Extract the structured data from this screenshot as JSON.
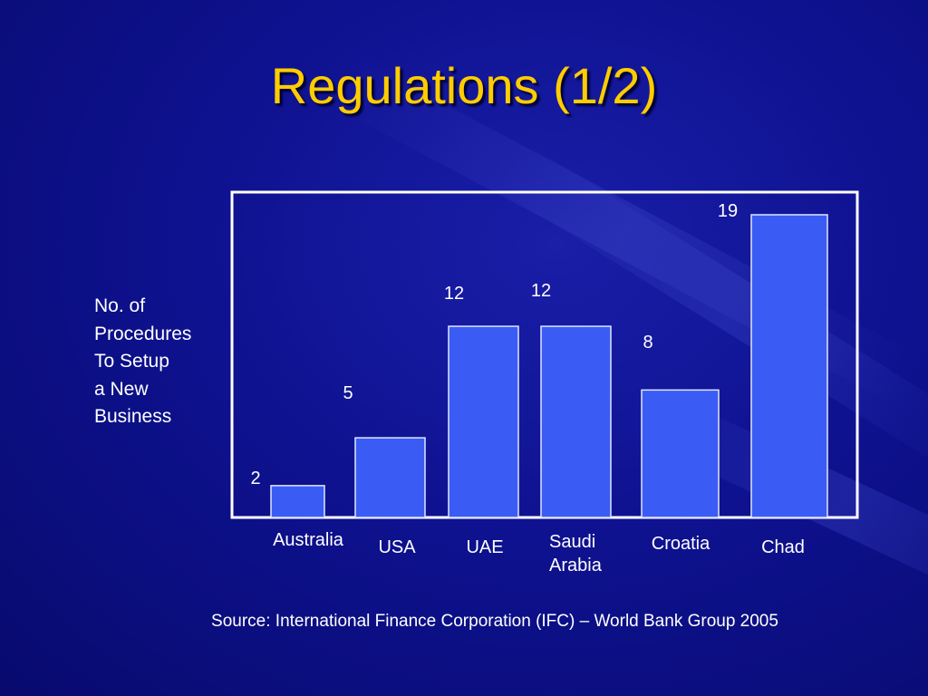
{
  "slide": {
    "title": "Regulations (1/2)",
    "source": "Source: International Finance Corporation (IFC) – World Bank Group 2005"
  },
  "chart_data": {
    "type": "bar",
    "categories": [
      "Australia",
      "USA",
      "UAE",
      "Saudi\nArabia",
      "Croatia",
      "Chad"
    ],
    "values": [
      2,
      5,
      12,
      12,
      8,
      19
    ],
    "ylabel": "No. of\nProcedures\nTo Setup\na New\nBusiness",
    "xlabel": "",
    "ylim": [
      0,
      20
    ],
    "grid": false,
    "legend": "none",
    "colors": {
      "bar_fill": "#3a5cf5",
      "bar_stroke": "#dfe6ff",
      "frame": "#ffffff",
      "label": "#ffffff",
      "title": "#ffcc00"
    }
  }
}
